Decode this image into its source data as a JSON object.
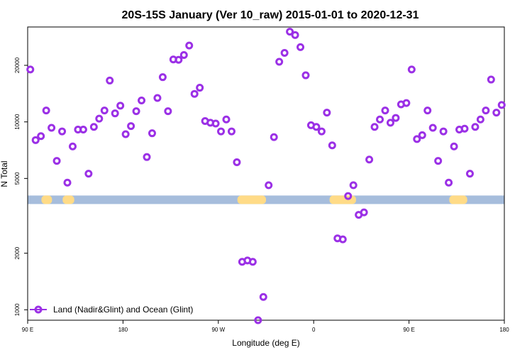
{
  "chart_data": {
    "type": "scatter",
    "title": "20S-15S January (Ver 10_raw)   2015-01-01 to 2020-12-31",
    "xlabel": "Longitude (deg E)",
    "ylabel": "N Total",
    "x_ticks": [
      "90 E",
      "180",
      "90 W",
      "0",
      "90 E",
      "180"
    ],
    "y_ticks": [
      "1000",
      "2000",
      "5000",
      "10000",
      "20000"
    ],
    "x_axis_note": "Longitude runs continuously from 90 E eastward through 180, 90 W, 0, 90 E to 180; values are degrees of travel from 90 E (0 to 450).",
    "xlim": [
      0,
      450
    ],
    "ylim_log": [
      880,
      32000
    ],
    "y_scale": "log",
    "grid": false,
    "legend": {
      "placement": "bottom-left"
    },
    "series": [
      {
        "name": "Land (Nadir&Glint) and Ocean (Glint)",
        "color": "#9B30E6",
        "marker": "open-circle",
        "points": [
          [
            2.5,
            19000
          ],
          [
            7.5,
            8000
          ],
          [
            12.5,
            8400
          ],
          [
            17.5,
            11500
          ],
          [
            22.5,
            9300
          ],
          [
            27.5,
            6200
          ],
          [
            32.5,
            8900
          ],
          [
            37.5,
            4750
          ],
          [
            42.5,
            7400
          ],
          [
            47.5,
            9100
          ],
          [
            52.5,
            9100
          ],
          [
            57.5,
            5300
          ],
          [
            62.5,
            9400
          ],
          [
            67.5,
            10400
          ],
          [
            72.5,
            11500
          ],
          [
            77.5,
            16600
          ],
          [
            82.5,
            11100
          ],
          [
            87.5,
            12200
          ],
          [
            92.5,
            8600
          ],
          [
            97.5,
            9500
          ],
          [
            102.5,
            11400
          ],
          [
            107.5,
            13000
          ],
          [
            112.5,
            6500
          ],
          [
            117.5,
            8700
          ],
          [
            122.5,
            13400
          ],
          [
            127.5,
            17300
          ],
          [
            132.5,
            11400
          ],
          [
            137.5,
            21500
          ],
          [
            142.5,
            21400
          ],
          [
            147.5,
            22700
          ],
          [
            152.5,
            25500
          ],
          [
            157.5,
            14100
          ],
          [
            162.5,
            15200
          ],
          [
            167.5,
            10100
          ],
          [
            172.5,
            9900
          ],
          [
            177.5,
            9800
          ],
          [
            182.5,
            8900
          ],
          [
            187.5,
            10300
          ],
          [
            192.5,
            8900
          ],
          [
            197.5,
            6100
          ],
          [
            202.5,
            1800
          ],
          [
            207.5,
            1830
          ],
          [
            212.5,
            1800
          ],
          [
            217.5,
            880
          ],
          [
            222.5,
            1170
          ],
          [
            227.5,
            4600
          ],
          [
            232.5,
            8300
          ],
          [
            237.5,
            20900
          ],
          [
            242.5,
            23300
          ],
          [
            247.5,
            30200
          ],
          [
            252.5,
            29000
          ],
          [
            257.5,
            25000
          ],
          [
            262.5,
            17700
          ],
          [
            267.5,
            9600
          ],
          [
            272.5,
            9400
          ],
          [
            277.5,
            8900
          ],
          [
            282.5,
            11200
          ],
          [
            287.5,
            7500
          ],
          [
            292.5,
            2400
          ],
          [
            297.5,
            2370
          ],
          [
            302.5,
            4030
          ],
          [
            307.5,
            4600
          ],
          [
            312.5,
            3200
          ],
          [
            317.5,
            3300
          ],
          [
            322.5,
            6300
          ],
          [
            327.5,
            9400
          ],
          [
            332.5,
            10300
          ],
          [
            337.5,
            11500
          ],
          [
            342.5,
            9900
          ],
          [
            347.5,
            10500
          ],
          [
            352.5,
            12400
          ],
          [
            357.5,
            12600
          ],
          [
            362.5,
            19000
          ],
          [
            367.5,
            8100
          ],
          [
            372.5,
            8500
          ],
          [
            377.5,
            11500
          ],
          [
            382.5,
            9300
          ],
          [
            387.5,
            6200
          ],
          [
            392.5,
            8900
          ],
          [
            397.5,
            4750
          ],
          [
            402.5,
            7400
          ],
          [
            407.5,
            9100
          ],
          [
            412.5,
            9200
          ],
          [
            417.5,
            5300
          ],
          [
            422.5,
            9400
          ],
          [
            427.5,
            10300
          ],
          [
            432.5,
            11500
          ],
          [
            437.5,
            16800
          ],
          [
            442.5,
            11200
          ],
          [
            447.5,
            12300
          ]
        ]
      }
    ],
    "surface_band": {
      "value": 3850,
      "colors": {
        "ocean": "#A6BDDC",
        "land": "#FFDB87"
      },
      "land_segments": [
        [
          13,
          23
        ],
        [
          33,
          44
        ],
        [
          198,
          225
        ],
        [
          285,
          310
        ],
        [
          398,
          415
        ]
      ]
    }
  }
}
